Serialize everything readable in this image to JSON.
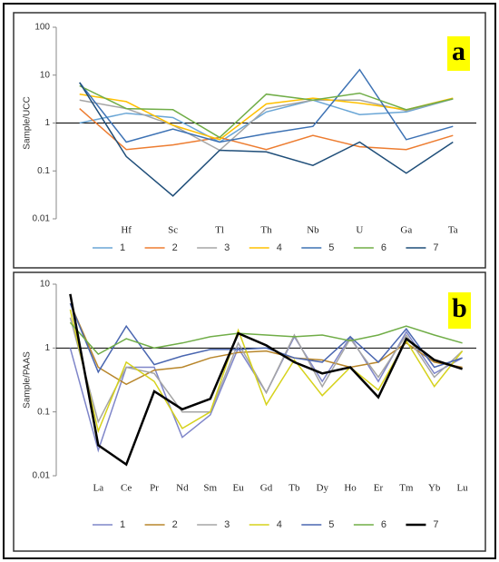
{
  "chart_data": [
    {
      "type": "line",
      "tag": "a",
      "y_label": "Sample/UCC",
      "log_scale": true,
      "grid": false,
      "hline": 1,
      "categories": [
        null,
        "Hf",
        "Sc",
        "Tl",
        "Th",
        "Nb",
        "U",
        "Ga",
        "Ta"
      ],
      "ylim": [
        0.01,
        100
      ],
      "yticks": [
        0.01,
        0.1,
        1,
        10,
        100
      ],
      "series": [
        {
          "name": "1",
          "color": "#6aa6d6",
          "values": [
            1.0,
            1.6,
            1.3,
            0.4,
            1.7,
            3,
            1.5,
            1.7,
            3.2
          ]
        },
        {
          "name": "2",
          "color": "#ed7d31",
          "values": [
            2,
            0.28,
            0.35,
            0.5,
            0.28,
            0.55,
            0.32,
            0.28,
            0.55
          ]
        },
        {
          "name": "3",
          "color": "#a5a5a5",
          "values": [
            3,
            2,
            0.9,
            0.27,
            2,
            3,
            3,
            1.8,
            3.2
          ]
        },
        {
          "name": "4",
          "color": "#ffc000",
          "values": [
            4,
            2.8,
            0.9,
            0.45,
            2.5,
            3.3,
            2.6,
            1.9,
            3.3
          ]
        },
        {
          "name": "5",
          "color": "#3d72b4",
          "values": [
            7,
            0.4,
            0.75,
            0.4,
            0.6,
            0.85,
            13,
            0.45,
            0.85
          ]
        },
        {
          "name": "6",
          "color": "#70ad47",
          "values": [
            6,
            2,
            1.9,
            0.5,
            4,
            3,
            4.2,
            1.9,
            3.2
          ]
        },
        {
          "name": "7",
          "color": "#1f4e79",
          "values": [
            7,
            0.2,
            0.03,
            0.27,
            0.25,
            0.13,
            0.4,
            0.09,
            0.4
          ]
        }
      ]
    },
    {
      "type": "line",
      "tag": "b",
      "y_label": "Sample/PAAS",
      "log_scale": true,
      "grid": false,
      "hline": 1,
      "categories": [
        null,
        "La",
        "Ce",
        "Pr",
        "Nd",
        "Sm",
        "Eu",
        "Gd",
        "Tb",
        "Dy",
        "Ho",
        "Er",
        "Tm",
        "Yb",
        "Lu"
      ],
      "ylim": [
        0.01,
        10
      ],
      "yticks": [
        0.01,
        0.1,
        1,
        10
      ],
      "series": [
        {
          "name": "1",
          "color": "#7f86c9",
          "values": [
            1,
            0.025,
            0.5,
            0.5,
            0.04,
            0.09,
            1.0,
            0.2,
            1.5,
            0.3,
            1.5,
            0.3,
            1.8,
            0.4,
            0.7
          ]
        },
        {
          "name": "2",
          "color": "#b8862b",
          "values": [
            5,
            0.5,
            0.27,
            0.45,
            0.5,
            0.7,
            0.85,
            0.9,
            0.7,
            0.65,
            0.5,
            0.6,
            1.2,
            0.6,
            0.5
          ]
        },
        {
          "name": "3",
          "color": "#a5a5a5",
          "values": [
            3,
            0.07,
            0.5,
            0.4,
            0.1,
            0.1,
            1.2,
            0.2,
            1.6,
            0.25,
            1.4,
            0.35,
            1.6,
            0.35,
            0.9
          ]
        },
        {
          "name": "4",
          "color": "#d6d21c",
          "values": [
            4,
            0.05,
            0.6,
            0.3,
            0.055,
            0.1,
            1.9,
            0.13,
            0.65,
            0.18,
            0.5,
            0.22,
            1.3,
            0.25,
            0.9
          ]
        },
        {
          "name": "5",
          "color": "#4a66b0",
          "values": [
            5,
            0.42,
            2.2,
            0.55,
            0.75,
            0.95,
            0.95,
            1.0,
            0.7,
            0.6,
            1.5,
            0.6,
            2.0,
            0.5,
            0.7
          ]
        },
        {
          "name": "6",
          "color": "#70ad47",
          "values": [
            2.5,
            0.8,
            1.4,
            1.0,
            1.2,
            1.5,
            1.7,
            1.6,
            1.5,
            1.6,
            1.3,
            1.6,
            2.2,
            1.6,
            1.2
          ]
        },
        {
          "name": "7",
          "color": "#000000",
          "line_width": 2.5,
          "values": [
            7,
            0.03,
            0.015,
            0.21,
            0.11,
            0.16,
            1.7,
            1.1,
            0.6,
            0.4,
            0.5,
            0.17,
            1.4,
            0.65,
            0.47
          ]
        }
      ]
    }
  ]
}
